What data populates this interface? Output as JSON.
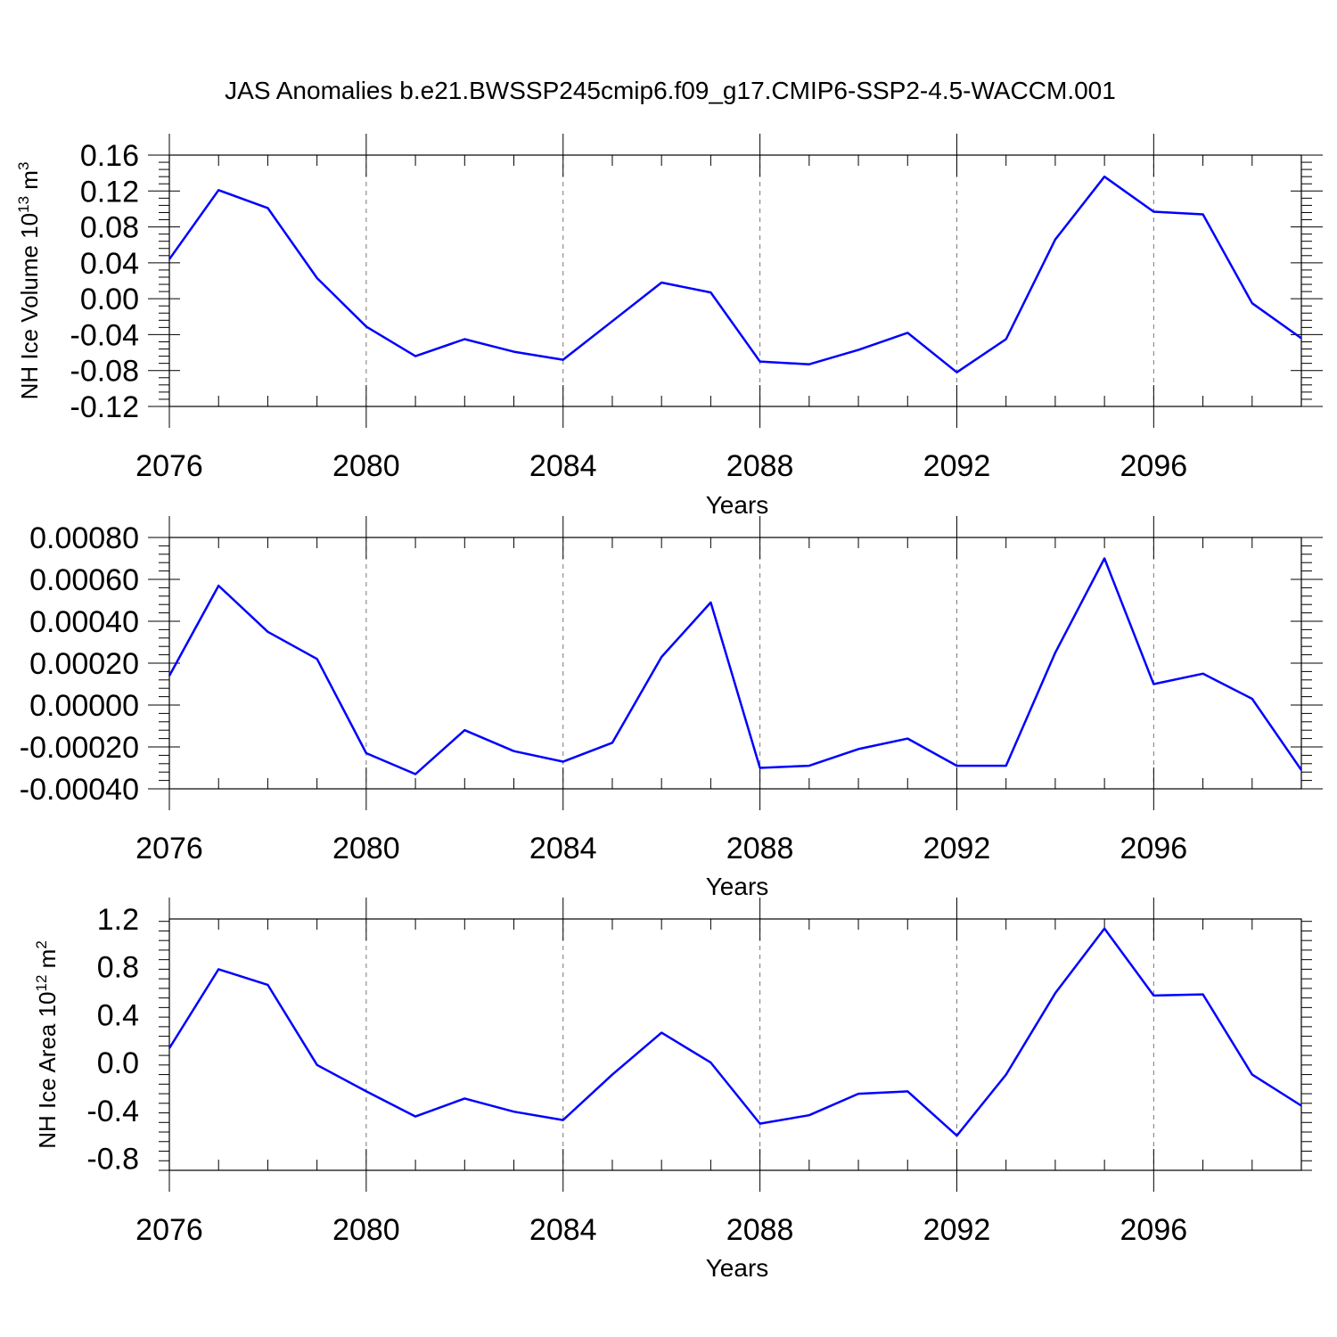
{
  "title": "JAS Anomalies b.e21.BWSSP245cmip6.f09_g17.CMIP6-SSP2-4.5-WACCM.001",
  "line_color": "#0000ff",
  "chart_data": [
    {
      "type": "line",
      "ylabel": "NH Ice Volume 10",
      "ylabel_sup": "13",
      "ylabel_unit": "m",
      "ylabel_unit_sup": "3",
      "xlabel": "Years",
      "xlim": [
        2076,
        2099
      ],
      "ylim": [
        -0.12,
        0.16
      ],
      "yticks": [
        -0.12,
        -0.08,
        -0.04,
        0.0,
        0.04,
        0.08,
        0.12,
        0.16
      ],
      "ytick_labels": [
        "-0.12",
        "-0.08",
        "-0.04",
        "0.00",
        "0.04",
        "0.08",
        "0.12",
        "0.16"
      ],
      "xticks": [
        2076,
        2080,
        2084,
        2088,
        2092,
        2096
      ],
      "xtick_labels": [
        "2076",
        "2080",
        "2084",
        "2088",
        "2092",
        "2096"
      ],
      "x": [
        2076,
        2077,
        2078,
        2079,
        2080,
        2081,
        2082,
        2083,
        2084,
        2085,
        2086,
        2087,
        2088,
        2089,
        2090,
        2091,
        2092,
        2093,
        2094,
        2095,
        2096,
        2097,
        2098,
        2099
      ],
      "values": [
        0.044,
        0.121,
        0.101,
        0.023,
        -0.031,
        -0.064,
        -0.045,
        -0.059,
        -0.068,
        -0.025,
        0.018,
        0.007,
        -0.07,
        -0.073,
        -0.057,
        -0.038,
        -0.082,
        -0.045,
        0.066,
        0.136,
        0.097,
        0.094,
        -0.005,
        -0.044
      ]
    },
    {
      "type": "line",
      "ylabel": "",
      "ylabel_sup": "",
      "ylabel_unit": "",
      "ylabel_unit_sup": "",
      "xlabel": "Years",
      "xlim": [
        2076,
        2099
      ],
      "ylim": [
        -0.0004,
        0.0008
      ],
      "yticks": [
        -0.0004,
        -0.0002,
        0.0,
        0.0002,
        0.0004,
        0.0006,
        0.0008
      ],
      "ytick_labels": [
        "-0.00040",
        "-0.00020",
        "0.00000",
        "0.00020",
        "0.00040",
        "0.00060",
        "0.00080"
      ],
      "xticks": [
        2076,
        2080,
        2084,
        2088,
        2092,
        2096
      ],
      "xtick_labels": [
        "2076",
        "2080",
        "2084",
        "2088",
        "2092",
        "2096"
      ],
      "x": [
        2076,
        2077,
        2078,
        2079,
        2080,
        2081,
        2082,
        2083,
        2084,
        2085,
        2086,
        2087,
        2088,
        2089,
        2090,
        2091,
        2092,
        2093,
        2094,
        2095,
        2096,
        2097,
        2098,
        2099
      ],
      "values": [
        0.00014,
        0.00057,
        0.00035,
        0.00022,
        -0.00023,
        -0.00033,
        -0.00012,
        -0.00022,
        -0.00027,
        -0.00018,
        0.00023,
        0.00049,
        -0.0003,
        -0.00029,
        -0.00021,
        -0.00016,
        -0.00029,
        -0.00029,
        0.00025,
        0.0007,
        0.0001,
        0.00015,
        3e-05,
        -0.00031
      ]
    },
    {
      "type": "line",
      "ylabel": "NH Ice Area 10",
      "ylabel_sup": "12",
      "ylabel_unit": "m",
      "ylabel_unit_sup": "2",
      "xlabel": "Years",
      "xlim": [
        2076,
        2099
      ],
      "ylim": [
        -0.9,
        1.2
      ],
      "yticks": [
        -0.8,
        -0.4,
        0.0,
        0.4,
        0.8,
        1.2
      ],
      "ytick_labels": [
        "-0.8",
        "-0.4",
        "0.0",
        "0.4",
        "0.8",
        "1.2"
      ],
      "xticks": [
        2076,
        2080,
        2084,
        2088,
        2092,
        2096
      ],
      "xtick_labels": [
        "2076",
        "2080",
        "2084",
        "2088",
        "2092",
        "2096"
      ],
      "x": [
        2076,
        2077,
        2078,
        2079,
        2080,
        2081,
        2082,
        2083,
        2084,
        2085,
        2086,
        2087,
        2088,
        2089,
        2090,
        2091,
        2092,
        2093,
        2094,
        2095,
        2096,
        2097,
        2098,
        2099
      ],
      "values": [
        0.12,
        0.78,
        0.65,
        -0.02,
        -0.24,
        -0.45,
        -0.3,
        -0.41,
        -0.48,
        -0.1,
        0.25,
        0.0,
        -0.51,
        -0.44,
        -0.26,
        -0.24,
        -0.61,
        -0.1,
        0.58,
        1.12,
        0.56,
        0.57,
        -0.1,
        -0.36
      ]
    }
  ]
}
